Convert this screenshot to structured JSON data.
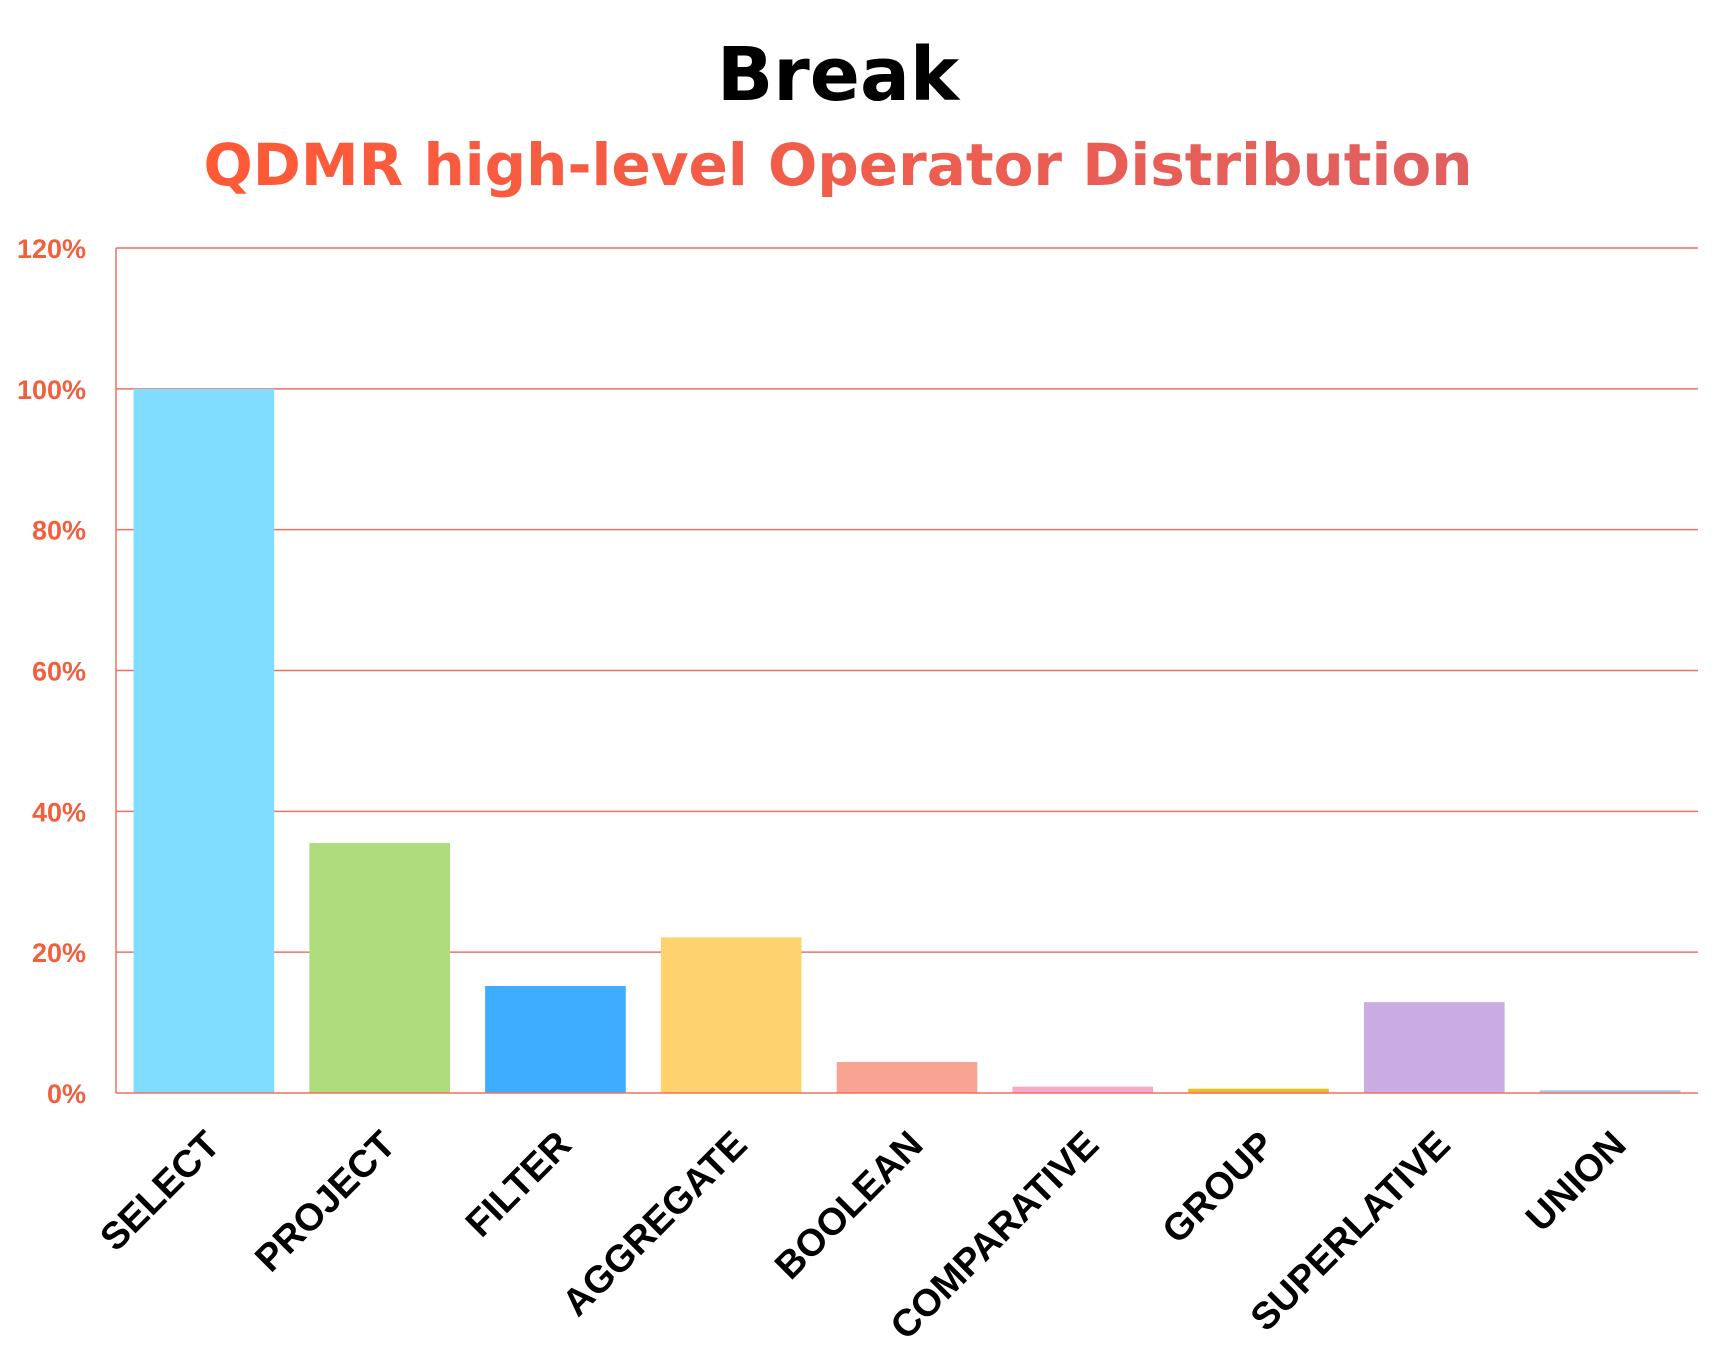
{
  "chart_data": {
    "type": "bar",
    "title": "Break",
    "subtitle": "QDMR high-level Operator Distribution",
    "categories": [
      "SELECT",
      "PROJECT",
      "FILTER",
      "AGGREGATE",
      "BOOLEAN",
      "COMPARATIVE",
      "GROUP",
      "SUPERLATIVE",
      "UNION"
    ],
    "values": [
      100,
      35.5,
      15.2,
      22.1,
      4.4,
      0.9,
      0.6,
      12.9,
      0.4
    ],
    "bar_colors": [
      "#80DDFE",
      "#AEDB7C",
      "#3FADFF",
      "#FED36F",
      "#F9A393",
      "#F7A8CB",
      "#F5BB1D",
      "#CAACE3",
      "#AEC8E9"
    ],
    "xlabel": "",
    "ylabel": "",
    "ylim": [
      0,
      120
    ],
    "yticks": [
      0,
      20,
      40,
      60,
      80,
      100,
      120
    ],
    "ytick_labels": [
      "0%",
      "20%",
      "40%",
      "60%",
      "80%",
      "100%",
      "120%"
    ],
    "grid": true,
    "legend": "none",
    "colors": {
      "title": "#000000",
      "subtitle_start": "#FF5A36",
      "subtitle_end": "#E06060",
      "gridline": "#F07060",
      "ytick_text": "#F0603F",
      "axis": "#F07060"
    }
  }
}
